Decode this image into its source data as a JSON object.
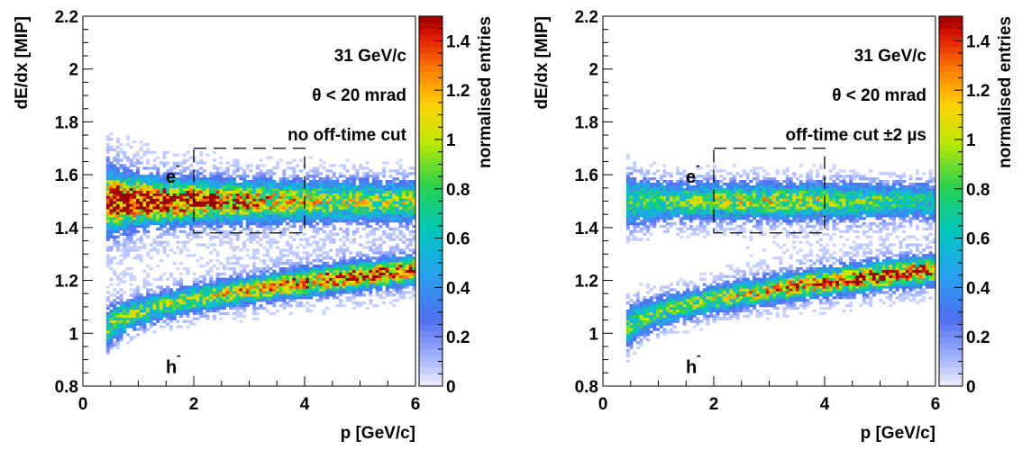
{
  "chart_data": [
    {
      "type": "heatmap",
      "xlabel": "p [GeV/c]",
      "ylabel": "dE/dx [MIP]",
      "zlabel": "normalised entries",
      "xlim": [
        0,
        6
      ],
      "ylim": [
        0.8,
        2.2
      ],
      "zlim": [
        0,
        1.5
      ],
      "xticks": [
        "0",
        "2",
        "4",
        "6"
      ],
      "yticks": [
        "0.8",
        "1",
        "1.2",
        "1.4",
        "1.6",
        "1.8",
        "2",
        "2.2"
      ],
      "zticks": [
        "0",
        "0.2",
        "0.4",
        "0.6",
        "0.8",
        "1",
        "1.2",
        "1.4"
      ],
      "annotations": [
        "31 GeV/c",
        "θ < 20 mrad",
        "no off-time cut"
      ],
      "particle_labels": {
        "electron": "e",
        "electron_sup": "-",
        "hadron": "h",
        "hadron_sup": "-"
      },
      "selection_box": {
        "p": [
          2,
          4
        ],
        "dEdx": [
          1.38,
          1.7
        ]
      },
      "bands": [
        {
          "name": "e",
          "p_range": [
            0.4,
            6
          ],
          "dEdx_center": [
            1.5,
            1.5
          ],
          "width": 0.045,
          "peak": 1.5,
          "peak_p": 0.8
        },
        {
          "name": "h",
          "p_range": [
            0.4,
            6
          ],
          "dEdx_center": [
            1.0,
            1.24
          ],
          "width": 0.03,
          "peak": 1.3,
          "peak_p": 5
        }
      ]
    },
    {
      "type": "heatmap",
      "xlabel": "p [GeV/c]",
      "ylabel": "dE/dx [MIP]",
      "zlabel": "normalised entries",
      "xlim": [
        0,
        6
      ],
      "ylim": [
        0.8,
        2.2
      ],
      "zlim": [
        0,
        1.5
      ],
      "xticks": [
        "0",
        "2",
        "4",
        "6"
      ],
      "yticks": [
        "0.8",
        "1",
        "1.2",
        "1.4",
        "1.6",
        "1.8",
        "2",
        "2.2"
      ],
      "zticks": [
        "0",
        "0.2",
        "0.4",
        "0.6",
        "0.8",
        "1",
        "1.2",
        "1.4"
      ],
      "annotations": [
        "31 GeV/c",
        "θ < 20 mrad",
        "off-time cut ±2 µs"
      ],
      "particle_labels": {
        "electron": "e",
        "electron_sup": "-",
        "hadron": "h",
        "hadron_sup": "-"
      },
      "selection_box": {
        "p": [
          2,
          4
        ],
        "dEdx": [
          1.38,
          1.7
        ]
      },
      "bands": [
        {
          "name": "e",
          "p_range": [
            0.4,
            6
          ],
          "dEdx_center": [
            1.5,
            1.5
          ],
          "width": 0.04,
          "peak": 0.9,
          "peak_p": 3
        },
        {
          "name": "h",
          "p_range": [
            0.4,
            6
          ],
          "dEdx_center": [
            1.0,
            1.24
          ],
          "width": 0.03,
          "peak": 1.3,
          "peak_p": 5
        }
      ]
    }
  ]
}
